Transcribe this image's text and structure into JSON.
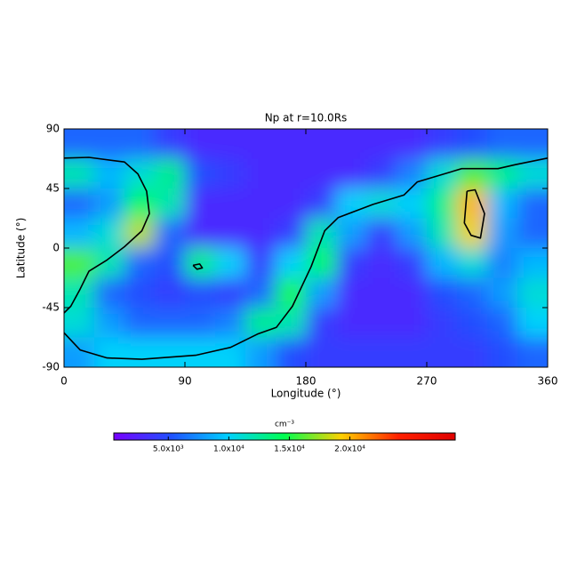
{
  "chart_data": {
    "type": "heatmap",
    "title": "Np at r=10.0Rs",
    "xlabel": "Longitude (°)",
    "ylabel": "Latitude (°)",
    "xlim": [
      0,
      360
    ],
    "ylim": [
      -90,
      90
    ],
    "xticks": [
      0,
      90,
      180,
      270,
      360
    ],
    "yticks": [
      -90,
      -45,
      0,
      45,
      90
    ],
    "x": [
      11.25,
      33.75,
      56.25,
      78.75,
      101.25,
      123.75,
      146.25,
      168.75,
      191.25,
      213.75,
      236.25,
      258.75,
      281.25,
      303.75,
      326.25,
      348.75
    ],
    "y": [
      78.75,
      56.25,
      33.75,
      11.25,
      -11.25,
      -33.75,
      -56.25,
      -78.75
    ],
    "z": [
      [
        6000,
        6000,
        6000,
        4000,
        3000,
        3000,
        3000,
        3000,
        3000,
        3000,
        3000,
        3000,
        4000,
        5000,
        6000,
        6000
      ],
      [
        12000,
        9000,
        11000,
        13000,
        5000,
        4000,
        3000,
        3000,
        3000,
        3000,
        4000,
        7000,
        11000,
        16000,
        13000,
        11000
      ],
      [
        6000,
        8000,
        14000,
        12000,
        3000,
        3000,
        3000,
        3000,
        4000,
        10000,
        11000,
        10000,
        13000,
        20000,
        9000,
        6000
      ],
      [
        9000,
        11000,
        18000,
        6000,
        3000,
        3000,
        3000,
        4000,
        12000,
        8000,
        4000,
        8000,
        12000,
        19000,
        8000,
        6000
      ],
      [
        16000,
        12000,
        6000,
        5000,
        13000,
        10000,
        4000,
        10000,
        14000,
        4000,
        3000,
        4000,
        9000,
        11000,
        7000,
        9000
      ],
      [
        12000,
        6000,
        5000,
        4000,
        5000,
        4000,
        6000,
        15000,
        8000,
        3000,
        3000,
        3000,
        5000,
        6000,
        8000,
        11000
      ],
      [
        11000,
        8000,
        6000,
        6000,
        6000,
        7000,
        13000,
        12000,
        4000,
        3000,
        3000,
        3000,
        4000,
        5000,
        6000,
        10000
      ],
      [
        8000,
        10000,
        10000,
        10000,
        10000,
        10000,
        8000,
        5000,
        4000,
        4000,
        4000,
        4000,
        4000,
        4000,
        5000,
        6000
      ]
    ],
    "contours": [
      {
        "x": [
          0,
          18.5,
          45,
          55,
          61.5,
          63.5,
          58,
          45,
          32,
          18.5,
          12,
          5,
          0
        ],
        "y": [
          68,
          68.5,
          65,
          56,
          43,
          26,
          13,
          1,
          -9,
          -17.5,
          -31,
          -44,
          -49
        ]
      },
      {
        "x": [
          360,
          336,
          323,
          296,
          263,
          253,
          230,
          204,
          194,
          184,
          170,
          158,
          144,
          124,
          98,
          58,
          32,
          12,
          0
        ],
        "y": [
          68,
          63,
          60,
          60,
          50,
          40,
          33,
          23,
          13,
          -14,
          -44,
          -60,
          -65,
          -75,
          -81,
          -84,
          -83,
          -77,
          -64
        ]
      },
      {
        "x": [
          300,
          306,
          313,
          310,
          303,
          298,
          300
        ],
        "y": [
          43,
          44,
          26,
          7.5,
          9.6,
          19,
          43
        ]
      },
      {
        "x": [
          96,
          101,
          103,
          99,
          96
        ],
        "y": [
          -13,
          -12,
          -15,
          -16,
          -13
        ]
      }
    ],
    "contour_color": "#000000",
    "colorbar": {
      "title": "cm⁻³",
      "clim": [
        500,
        28700
      ],
      "ticks": [
        {
          "value": 5000,
          "label": "5.0x10³"
        },
        {
          "value": 10000,
          "label": "1.0x10⁴"
        },
        {
          "value": 15000,
          "label": "1.5x10⁴"
        },
        {
          "value": 20000,
          "label": "2.0x10⁴"
        }
      ],
      "colors": [
        "#7800ff",
        "#2050ff",
        "#00d0ff",
        "#00ff50",
        "#ffd000",
        "#ff2000",
        "#e00000"
      ]
    }
  }
}
